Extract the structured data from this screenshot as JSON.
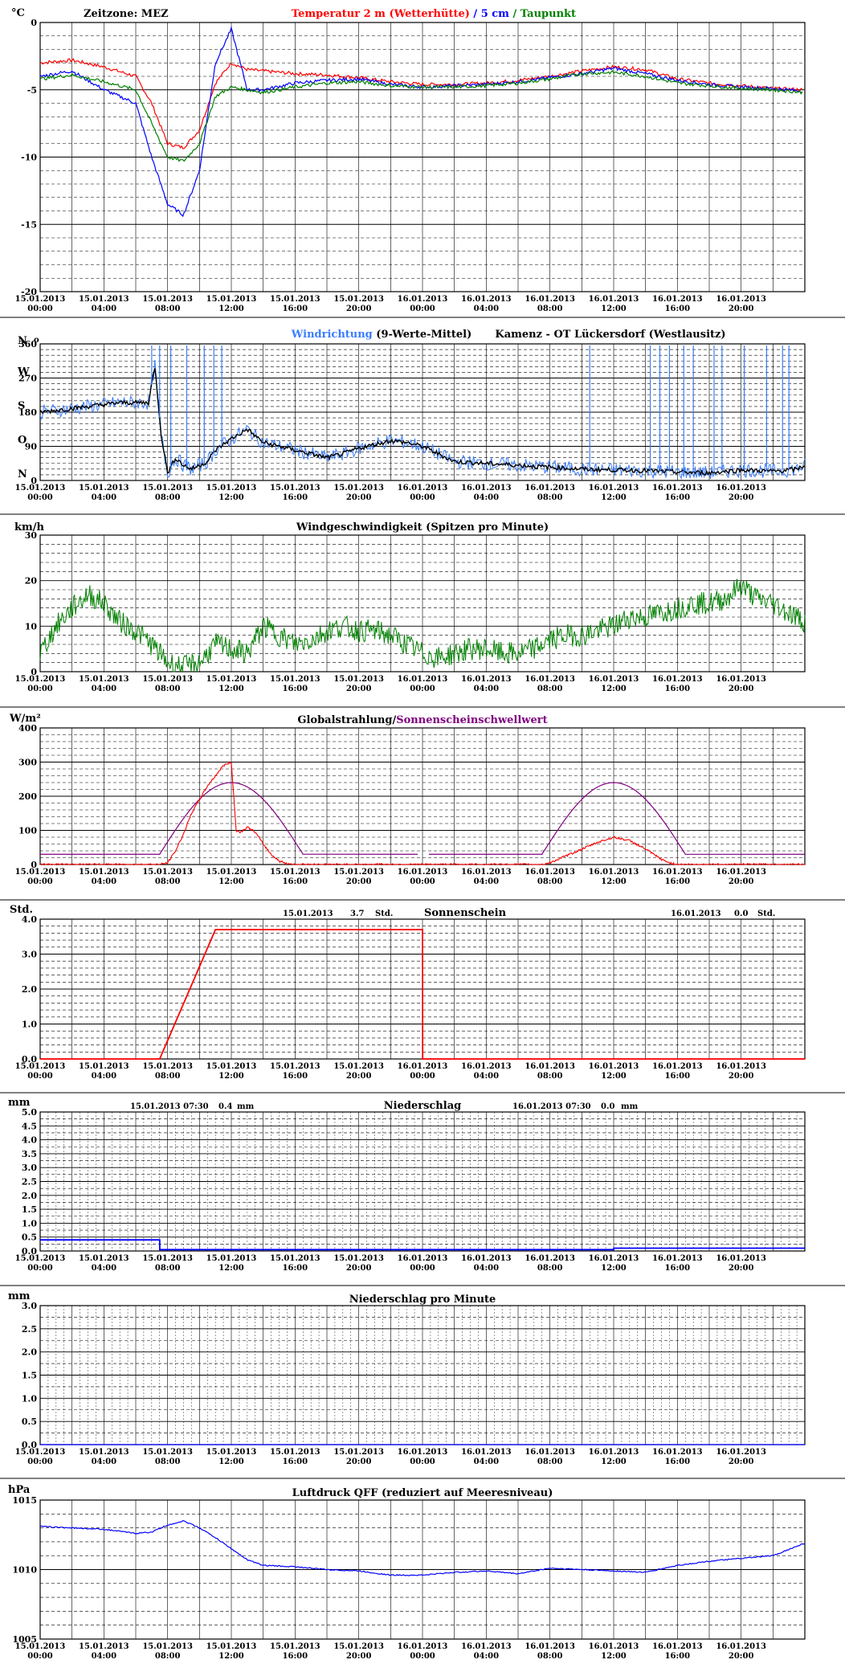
{
  "timezone_label": "Zeitzone: MEZ",
  "station": "Kamenz - OT Lückersdorf (Westlausitz)",
  "x_ticks": [
    [
      "15.01.2013",
      "00:00"
    ],
    [
      "15.01.2013",
      "04:00"
    ],
    [
      "15.01.2013",
      "08:00"
    ],
    [
      "15.01.2013",
      "12:00"
    ],
    [
      "15.01.2013",
      "16:00"
    ],
    [
      "15.01.2013",
      "20:00"
    ],
    [
      "16.01.2013",
      "00:00"
    ],
    [
      "16.01.2013",
      "04:00"
    ],
    [
      "16.01.2013",
      "08:00"
    ],
    [
      "16.01.2013",
      "12:00"
    ],
    [
      "16.01.2013",
      "16:00"
    ],
    [
      "16.01.2013",
      "20:00"
    ]
  ],
  "colors": {
    "red": "#ff0000",
    "blue": "#0000ff",
    "green": "#008000",
    "purple": "#800080",
    "lightblue": "#3a7dff",
    "black": "#000000"
  },
  "chart_data": [
    {
      "type": "line",
      "unit": "°C",
      "ylim": [
        -20,
        0
      ],
      "yticks": [
        "0",
        "-5",
        "-10",
        "-15",
        "-20"
      ],
      "legend": {
        "t2m": "Temperatur 2 m (Wetterhütte)",
        "sep": "/",
        "t5cm": "5 cm",
        "sep2": "/",
        "dew": "Taupunkt"
      },
      "x_hours": [
        0,
        2,
        4,
        6,
        7,
        8,
        9,
        10,
        11,
        12,
        13,
        14,
        16,
        18,
        20,
        22,
        24,
        26,
        28,
        30,
        32,
        34,
        36,
        38,
        40,
        42,
        44,
        46,
        47.9
      ],
      "series": [
        {
          "name": "Temperatur 2 m (Wetterhütte)",
          "color": "red",
          "values": [
            -3.0,
            -2.8,
            -3.3,
            -4.0,
            -6.0,
            -9.0,
            -9.3,
            -8.0,
            -4.5,
            -3.0,
            -3.5,
            -3.6,
            -3.8,
            -3.9,
            -4.1,
            -4.4,
            -4.6,
            -4.6,
            -4.5,
            -4.3,
            -4.0,
            -3.6,
            -3.3,
            -3.5,
            -4.2,
            -4.5,
            -4.7,
            -4.9,
            -5.0
          ]
        },
        {
          "name": "5 cm",
          "color": "blue",
          "values": [
            -4.0,
            -3.6,
            -5.0,
            -6.0,
            -10.0,
            -13.5,
            -14.3,
            -11.0,
            -3.0,
            -0.5,
            -5.0,
            -5.0,
            -4.5,
            -4.3,
            -4.2,
            -4.6,
            -4.8,
            -4.7,
            -4.6,
            -4.4,
            -4.1,
            -3.8,
            -3.4,
            -3.8,
            -4.3,
            -4.6,
            -4.8,
            -4.9,
            -5.1
          ]
        },
        {
          "name": "Taupunkt",
          "color": "green",
          "values": [
            -4.2,
            -3.9,
            -4.4,
            -5.0,
            -7.5,
            -10.0,
            -10.3,
            -9.0,
            -5.5,
            -4.8,
            -5.0,
            -5.2,
            -4.8,
            -4.5,
            -4.4,
            -4.7,
            -4.8,
            -4.8,
            -4.7,
            -4.5,
            -4.2,
            -3.8,
            -3.7,
            -4.0,
            -4.5,
            -4.7,
            -4.9,
            -5.0,
            -5.2
          ]
        }
      ]
    },
    {
      "type": "line",
      "ylim": [
        0,
        360
      ],
      "yticks": [
        "360",
        "270",
        "180",
        "90",
        "0"
      ],
      "dir_labels": [
        "N",
        "W",
        "S",
        "O",
        "N"
      ],
      "deg_mark": "o",
      "legend": {
        "avg": "Windrichtung",
        "rest": "(9-Werte-Mittel)"
      },
      "x_hours": [
        0,
        1,
        2,
        3,
        4,
        5,
        6,
        6.8,
        7.2,
        7.6,
        8,
        8.5,
        9,
        9.5,
        10,
        10.5,
        11,
        12,
        13,
        14,
        15,
        16,
        17,
        18,
        19,
        20,
        21,
        22,
        23,
        24,
        25,
        26,
        28,
        30,
        32,
        34,
        36,
        38,
        40,
        42,
        44,
        46,
        47.5,
        48
      ],
      "series": [
        {
          "name": "Windrichtung",
          "color": "black",
          "values": [
            180,
            185,
            190,
            195,
            200,
            205,
            205,
            205,
            300,
            120,
            20,
            60,
            40,
            30,
            40,
            50,
            80,
            110,
            135,
            100,
            90,
            80,
            70,
            60,
            70,
            85,
            95,
            105,
            100,
            90,
            70,
            50,
            45,
            40,
            35,
            30,
            28,
            26,
            22,
            20,
            28,
            24,
            30,
            40
          ]
        }
      ],
      "spikes_hours": [
        7.0,
        7.5,
        8.2,
        9.2,
        10.3,
        10.9,
        11.4,
        34.5,
        38.3,
        38.9,
        39.5,
        40.4,
        41.0,
        42.3,
        42.8,
        44.2,
        45.6,
        46.6,
        47.0
      ]
    },
    {
      "type": "line",
      "unit": "km/h",
      "ylim": [
        0,
        30
      ],
      "yticks": [
        "30",
        "20",
        "10",
        "0"
      ],
      "title": "Windgeschwindigkeit (Spitzen pro Minute)",
      "x_hours": [
        0,
        1,
        2,
        3,
        4,
        5,
        6,
        7,
        8,
        9,
        10,
        11,
        12,
        13,
        14,
        15,
        16,
        17,
        18,
        19,
        20,
        21,
        22,
        23,
        24,
        25,
        26,
        27,
        28,
        29,
        30,
        31,
        32,
        33,
        34,
        35,
        36,
        37,
        38,
        39,
        40,
        41,
        42,
        43,
        44,
        45,
        46,
        47,
        48
      ],
      "series": [
        {
          "name": "Windgeschwindigkeit",
          "color": "green",
          "values": [
            4,
            10,
            14,
            17,
            15,
            11,
            9,
            6,
            2,
            1,
            2,
            6,
            5,
            4,
            10,
            8,
            6,
            7,
            9,
            10,
            9,
            9,
            8,
            6,
            4,
            3,
            4,
            5,
            5,
            4,
            4,
            5,
            7,
            8,
            8,
            9,
            10,
            12,
            12,
            13,
            14,
            15,
            15,
            16,
            19,
            16,
            15,
            13,
            11
          ]
        }
      ]
    },
    {
      "type": "line",
      "unit": "W/m²",
      "ylim": [
        0,
        400
      ],
      "yticks": [
        "400",
        "300",
        "200",
        "100",
        "0"
      ],
      "legend": {
        "glob": "Globalstrahlung/",
        "sun": "Sonnenscheinschwellwert"
      },
      "x_hours": [
        0,
        7.5,
        8,
        8.5,
        9,
        9.5,
        10,
        10.5,
        11,
        11.5,
        12,
        12.3,
        12.6,
        13,
        13.5,
        14,
        14.5,
        15,
        15.5,
        16,
        24,
        31.5,
        32,
        33,
        34,
        35,
        36,
        37,
        38,
        39,
        39.5,
        40,
        48
      ],
      "series": [
        {
          "name": "Globalstrahlung",
          "color": "red",
          "values": [
            0,
            0,
            5,
            40,
            90,
            150,
            190,
            230,
            260,
            290,
            300,
            100,
            95,
            110,
            95,
            60,
            30,
            10,
            3,
            0,
            0,
            0,
            5,
            25,
            45,
            65,
            80,
            70,
            45,
            15,
            5,
            0,
            0
          ]
        }
      ],
      "threshold": {
        "name": "Sonnenscheinschwellwert",
        "color": "purple",
        "base": 30,
        "peak_day1": 240,
        "peak_day2": 240,
        "day1_hours": [
          7.5,
          16.5
        ],
        "day2_hours": [
          31.5,
          40.5
        ]
      }
    },
    {
      "type": "line",
      "unit": "Std.",
      "ylim": [
        0,
        4
      ],
      "yticks": [
        "4.0",
        "3.0",
        "2.0",
        "1.0",
        "0.0"
      ],
      "title": "Sonnenschein",
      "sum1": {
        "date": "15.01.2013",
        "value": "3.7",
        "unit": "Std."
      },
      "sum2": {
        "date": "16.01.2013",
        "value": "0.0",
        "unit": "Std."
      },
      "x_hours": [
        0,
        7.5,
        11,
        12,
        24,
        24.01,
        48
      ],
      "series": [
        {
          "name": "Sonnenschein",
          "color": "red",
          "values": [
            0,
            0,
            3.7,
            3.7,
            3.7,
            0,
            0
          ]
        }
      ]
    },
    {
      "type": "line",
      "unit": "mm",
      "ylim": [
        0,
        5
      ],
      "yticks": [
        "5.0",
        "4.5",
        "4.0",
        "3.5",
        "3.0",
        "2.5",
        "2.0",
        "1.5",
        "1.0",
        "0.5",
        "0.0"
      ],
      "title": "Niederschlag",
      "sum1": {
        "date": "15.01.2013 07:30",
        "value": "0.4",
        "unit": "mm"
      },
      "sum2": {
        "date": "16.01.2013 07:30",
        "value": "0.0",
        "unit": "mm"
      },
      "x_hours": [
        0,
        7.5,
        7.51,
        36,
        36.01,
        48
      ],
      "series": [
        {
          "name": "Niederschlag",
          "color": "blue",
          "values": [
            0.4,
            0.4,
            0.05,
            0.05,
            0.1,
            0.1
          ]
        }
      ]
    },
    {
      "type": "line",
      "unit": "mm",
      "ylim": [
        0,
        3
      ],
      "yticks": [
        "3.0",
        "2.5",
        "2.0",
        "1.5",
        "1.0",
        "0.5",
        "0.0"
      ],
      "title": "Niederschlag pro Minute",
      "x_hours": [
        0,
        48
      ],
      "series": [
        {
          "name": "Niederschlag pro Minute",
          "color": "blue",
          "values": [
            0,
            0
          ]
        }
      ]
    },
    {
      "type": "line",
      "unit": "hPa",
      "ylim": [
        1005,
        1015
      ],
      "yticks": [
        "1015",
        "1010",
        "1005"
      ],
      "title": "Luftdruck QFF (reduziert auf Meeresniveau)",
      "x_hours": [
        0,
        2,
        4,
        6,
        7,
        8,
        9,
        10,
        11,
        12,
        13,
        14,
        16,
        18,
        20,
        22,
        24,
        26,
        28,
        30,
        32,
        34,
        36,
        38,
        40,
        42,
        44,
        46,
        48
      ],
      "series": [
        {
          "name": "Luftdruck QFF",
          "color": "blue",
          "values": [
            1013.1,
            1013.0,
            1012.9,
            1012.6,
            1012.7,
            1013.2,
            1013.5,
            1013.0,
            1012.3,
            1011.5,
            1010.7,
            1010.3,
            1010.2,
            1010.0,
            1009.9,
            1009.6,
            1009.6,
            1009.8,
            1009.9,
            1009.7,
            1010.1,
            1010.0,
            1009.9,
            1009.8,
            1010.3,
            1010.6,
            1010.8,
            1011.0,
            1011.9
          ]
        }
      ]
    }
  ]
}
